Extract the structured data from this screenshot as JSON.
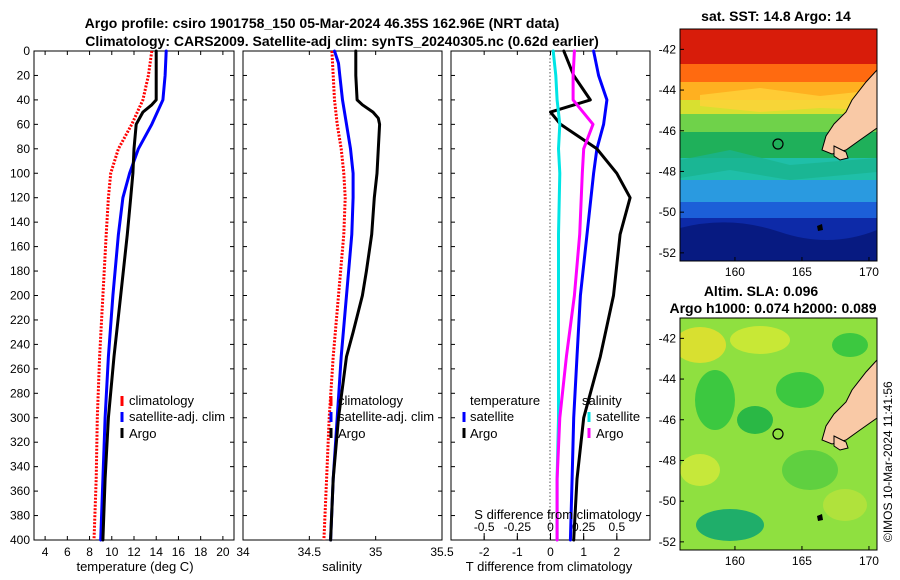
{
  "header": {
    "title_line1": "Argo profile: csiro 1901758_150 05-Mar-2024 46.35S 162.96E (NRT data)",
    "title_line2": "Climatology: CARS2009. Satellite-adj clim: synTS_20240305.nc (0.62d earlier)"
  },
  "colors": {
    "climatology": "#ff0000",
    "satellite": "#0000ff",
    "argo": "#000000",
    "sal_satellite": "#00e5e5",
    "sal_argo": "#ff00ff",
    "land": "#f9c9a6"
  },
  "depth_ticks": [
    "0",
    "20",
    "40",
    "60",
    "80",
    "100",
    "120",
    "140",
    "160",
    "180",
    "200",
    "220",
    "240",
    "260",
    "280",
    "300",
    "320",
    "340",
    "360",
    "380",
    "400"
  ],
  "legends": {
    "panel1": [
      "climatology",
      "satellite-adj. clim",
      "Argo"
    ],
    "panel2": [
      "climatology",
      "satellite-adj. clim",
      "Argo"
    ],
    "diff_temp_title": "temperature",
    "diff_sal_title": "salinity",
    "diff_entries": [
      "satellite",
      "Argo"
    ]
  },
  "map1": {
    "title": "sat. SST: 14.8 Argo: 14",
    "yticks": [
      "-42",
      "-44",
      "-46",
      "-48",
      "-50",
      "-52"
    ],
    "xticks": [
      "160",
      "165",
      "170"
    ]
  },
  "map2": {
    "title_line1": "Altim. SLA: 0.096",
    "title_line2": "Argo h1000: 0.074 h2000: 0.089",
    "yticks": [
      "-42",
      "-44",
      "-46",
      "-48",
      "-50",
      "-52"
    ],
    "xticks": [
      "160",
      "165",
      "170"
    ]
  },
  "credit": "©IMOS 10-Mar-2024 11:41:56",
  "chart_data": [
    {
      "type": "line",
      "title": "",
      "xlabel": "temperature (deg C)",
      "ylabel": "",
      "xlim": [
        3,
        21
      ],
      "ylim": [
        400,
        0
      ],
      "xticks": [
        "4",
        "6",
        "8",
        "10",
        "12",
        "14",
        "16",
        "18",
        "20"
      ],
      "xtick_values": [
        4,
        6,
        8,
        10,
        12,
        14,
        16,
        18,
        20
      ],
      "series": [
        {
          "name": "climatology",
          "color": "#ff0000",
          "style": "dotted",
          "depth": [
            0,
            20,
            40,
            60,
            80,
            100,
            120,
            150,
            200,
            250,
            300,
            350,
            400
          ],
          "values": [
            13.6,
            13.3,
            12.8,
            11.8,
            10.6,
            9.9,
            9.7,
            9.5,
            9.2,
            8.9,
            8.7,
            8.6,
            8.4
          ]
        },
        {
          "name": "satellite-adj. clim",
          "color": "#0000ff",
          "style": "solid",
          "depth": [
            0,
            20,
            40,
            60,
            80,
            100,
            120,
            150,
            200,
            250,
            300,
            350,
            400
          ],
          "values": [
            14.9,
            14.8,
            14.6,
            13.6,
            12.4,
            11.6,
            11.0,
            10.6,
            10.1,
            9.7,
            9.4,
            9.2,
            9.0
          ]
        },
        {
          "name": "Argo",
          "color": "#000000",
          "style": "solid",
          "depth": [
            0,
            20,
            40,
            44,
            50,
            60,
            80,
            100,
            120,
            150,
            200,
            250,
            300,
            350,
            400
          ],
          "values": [
            14.0,
            14.0,
            14.0,
            13.6,
            12.8,
            12.2,
            12.0,
            11.9,
            11.7,
            11.4,
            10.8,
            10.2,
            9.7,
            9.4,
            9.2
          ]
        }
      ]
    },
    {
      "type": "line",
      "title": "",
      "xlabel": "salinity",
      "ylabel": "",
      "xlim": [
        34,
        35.5
      ],
      "ylim": [
        400,
        0
      ],
      "xticks": [
        "34",
        "34.5",
        "35",
        "35.5"
      ],
      "xtick_values": [
        34,
        34.5,
        35,
        35.5
      ],
      "series": [
        {
          "name": "climatology",
          "color": "#ff0000",
          "style": "dotted",
          "depth": [
            0,
            20,
            40,
            60,
            80,
            100,
            120,
            150,
            200,
            250,
            300,
            350,
            400
          ],
          "values": [
            34.67,
            34.68,
            34.69,
            34.71,
            34.74,
            34.76,
            34.77,
            34.76,
            34.72,
            34.68,
            34.65,
            34.63,
            34.61
          ]
        },
        {
          "name": "satellite-adj. clim",
          "color": "#0000ff",
          "style": "solid",
          "depth": [
            0,
            10,
            20,
            40,
            60,
            80,
            100,
            120,
            150,
            200,
            250,
            300,
            350,
            400
          ],
          "values": [
            34.69,
            34.72,
            34.73,
            34.75,
            34.78,
            34.81,
            34.83,
            34.83,
            34.82,
            34.78,
            34.74,
            34.71,
            34.68,
            34.66
          ]
        },
        {
          "name": "Argo",
          "color": "#000000",
          "style": "solid",
          "depth": [
            0,
            20,
            40,
            44,
            50,
            55,
            60,
            80,
            100,
            120,
            150,
            180,
            200,
            230,
            250,
            300,
            350,
            400
          ],
          "values": [
            34.85,
            34.85,
            34.86,
            34.9,
            34.98,
            35.02,
            35.03,
            35.02,
            35.01,
            34.99,
            34.97,
            34.93,
            34.9,
            34.83,
            34.78,
            34.72,
            34.68,
            34.66
          ]
        }
      ]
    },
    {
      "type": "line",
      "title": "",
      "xlabel": "T difference from climatology",
      "ylabel": "",
      "xlim": [
        -3,
        3
      ],
      "ylim": [
        400,
        0
      ],
      "xticks": [
        "-2",
        "-1",
        "0",
        "1",
        "2"
      ],
      "xtick_values": [
        -2,
        -1,
        0,
        1,
        2
      ],
      "secondary_axis": {
        "label": "S difference from climatology",
        "xlim": [
          -0.75,
          0.75
        ],
        "xticks": [
          "-0.5",
          "-0.25",
          "0",
          "0.25",
          "0.5"
        ],
        "xtick_values": [
          -0.5,
          -0.25,
          0,
          0.25,
          0.5
        ]
      },
      "series": [
        {
          "name": "temperature satellite",
          "color": "#0000ff",
          "style": "solid",
          "depth": [
            0,
            20,
            40,
            60,
            80,
            100,
            150,
            200,
            250,
            300,
            350,
            400
          ],
          "values": [
            1.3,
            1.45,
            1.7,
            1.6,
            1.4,
            1.3,
            1.1,
            0.9,
            0.8,
            0.7,
            0.65,
            0.6
          ]
        },
        {
          "name": "temperature Argo",
          "color": "#000000",
          "style": "solid",
          "depth": [
            0,
            20,
            40,
            50,
            60,
            80,
            100,
            120,
            150,
            200,
            250,
            300,
            350,
            400
          ],
          "values": [
            0.4,
            0.7,
            1.2,
            0.0,
            0.3,
            1.4,
            2.0,
            2.4,
            2.1,
            1.9,
            1.5,
            1.0,
            0.8,
            0.7
          ]
        },
        {
          "name": "salinity satellite",
          "color": "#00e5e5",
          "style": "solid",
          "depth": [
            0,
            20,
            40,
            60,
            80,
            100,
            150,
            200,
            250,
            300,
            350,
            400
          ],
          "values": [
            0.02,
            0.04,
            0.05,
            0.07,
            0.06,
            0.07,
            0.06,
            0.06,
            0.06,
            0.06,
            0.05,
            0.05
          ]
        },
        {
          "name": "salinity Argo",
          "color": "#ff00ff",
          "style": "solid",
          "depth": [
            0,
            20,
            40,
            60,
            80,
            100,
            150,
            200,
            250,
            300,
            350,
            400
          ],
          "values": [
            0.18,
            0.17,
            0.17,
            0.32,
            0.25,
            0.24,
            0.22,
            0.18,
            0.12,
            0.07,
            0.05,
            0.05
          ]
        }
      ]
    }
  ]
}
